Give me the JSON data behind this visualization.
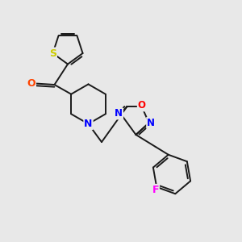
{
  "background_color": "#e8e8e8",
  "bond_color": "#1a1a1a",
  "atom_colors": {
    "S": "#cccc00",
    "O_carbonyl": "#ff4400",
    "N": "#0000ff",
    "O_oxadiazole": "#ff0000",
    "F": "#ff00ff"
  }
}
